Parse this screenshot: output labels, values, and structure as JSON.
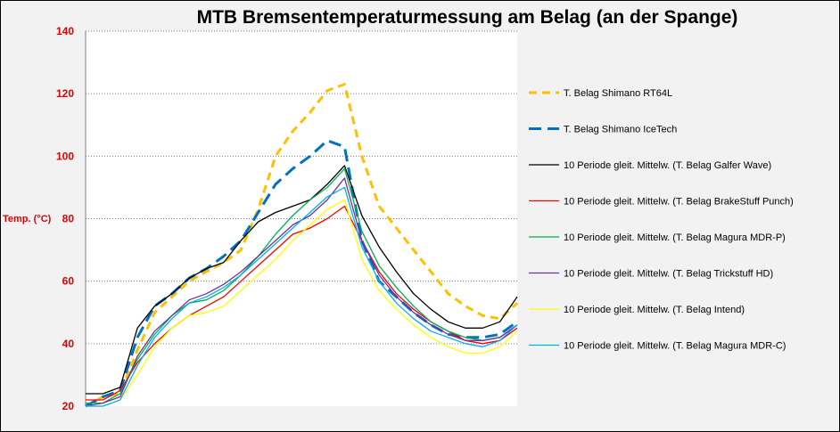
{
  "chart_data": {
    "type": "line",
    "title": "MTB Bremsentemperaturmessung am Belag (an der Spange)",
    "xlabel": "",
    "ylabel": "Temp. (°C)",
    "ylim": [
      20,
      140
    ],
    "yticks": [
      "20",
      "40",
      "60",
      "80",
      "100",
      "120",
      "140"
    ],
    "x_tick_labels": false,
    "grid": "horizontal dotted",
    "legend_position": "right",
    "x": [
      0,
      4,
      8,
      12,
      16,
      20,
      24,
      28,
      32,
      36,
      40,
      44,
      48,
      52,
      56,
      60,
      64,
      68,
      72,
      76,
      80,
      84,
      88,
      92,
      96,
      100
    ],
    "series": [
      {
        "name": "T. Belag Shimano  RT64L",
        "color": "#ffc000",
        "dash": "dashed",
        "width": 3,
        "values": [
          20,
          23,
          24,
          38,
          50,
          55,
          60,
          63,
          66,
          70,
          83,
          100,
          108,
          114,
          121,
          123,
          100,
          84,
          77,
          70,
          63,
          56,
          52,
          49,
          48,
          53
        ]
      },
      {
        "name": "T. Belag Shimano  IceTech",
        "color": "#0070c0",
        "dash": "longdash",
        "width": 3,
        "values": [
          20,
          23,
          25,
          42,
          52,
          56,
          61,
          64,
          68,
          73,
          82,
          91,
          96,
          100,
          105,
          103,
          73,
          60,
          55,
          50,
          46,
          43,
          42,
          42,
          43,
          47
        ]
      },
      {
        "name": "10 Periode gleit. Mittelw.  (T. Belag Galfer Wave)",
        "color": "#000000",
        "dash": "solid",
        "width": 1.3,
        "values": [
          24,
          24,
          26,
          45,
          52,
          56,
          61,
          64,
          66,
          73,
          79,
          82,
          84,
          86,
          91,
          97,
          81,
          71,
          63,
          56,
          51,
          47,
          45,
          45,
          47,
          55
        ]
      },
      {
        "name": "10 Periode gleit. Mittelw.  (T. Belag BrakeStuff Punch)",
        "color": "#ff0000",
        "dash": "solid",
        "width": 1.3,
        "values": [
          22,
          22,
          25,
          34,
          40,
          45,
          49,
          52,
          55,
          60,
          65,
          70,
          75,
          77,
          80,
          84,
          73,
          63,
          56,
          51,
          47,
          44,
          41,
          40,
          41,
          45
        ]
      },
      {
        "name": "10 Periode gleit. Mittelw.  (T. Belag Magura MDR-P)",
        "color": "#00b050",
        "dash": "solid",
        "width": 1.3,
        "values": [
          21,
          21,
          24,
          35,
          43,
          49,
          53,
          54,
          57,
          62,
          68,
          75,
          81,
          86,
          90,
          96,
          76,
          65,
          58,
          52,
          47,
          44,
          42,
          41,
          42,
          46
        ]
      },
      {
        "name": "10 Periode gleit. Mittelw.  (T. Belag Trickstuff HD)",
        "color": "#7030a0",
        "dash": "solid",
        "width": 1.3,
        "values": [
          20,
          21,
          23,
          36,
          44,
          49,
          54,
          56,
          59,
          63,
          68,
          73,
          78,
          81,
          86,
          93,
          73,
          62,
          55,
          50,
          46,
          43,
          41,
          41,
          42,
          46
        ]
      },
      {
        "name": "10 Periode gleit. Mittelw.  (T. Belag Intend)",
        "color": "#ffff00",
        "dash": "solid",
        "width": 1.3,
        "values": [
          20,
          20,
          22,
          30,
          39,
          45,
          49,
          50,
          52,
          57,
          62,
          67,
          73,
          78,
          83,
          86,
          67,
          57,
          51,
          46,
          42,
          39,
          37,
          37,
          39,
          44
        ]
      },
      {
        "name": "10 Periode gleit. Mittelw.  (T. Belag Magura MDR-C)",
        "color": "#00b0f0",
        "dash": "solid",
        "width": 1.3,
        "values": [
          20,
          20,
          22,
          33,
          42,
          48,
          53,
          55,
          58,
          62,
          67,
          72,
          77,
          82,
          87,
          90,
          71,
          60,
          53,
          48,
          44,
          42,
          40,
          39,
          41,
          46
        ]
      }
    ]
  }
}
